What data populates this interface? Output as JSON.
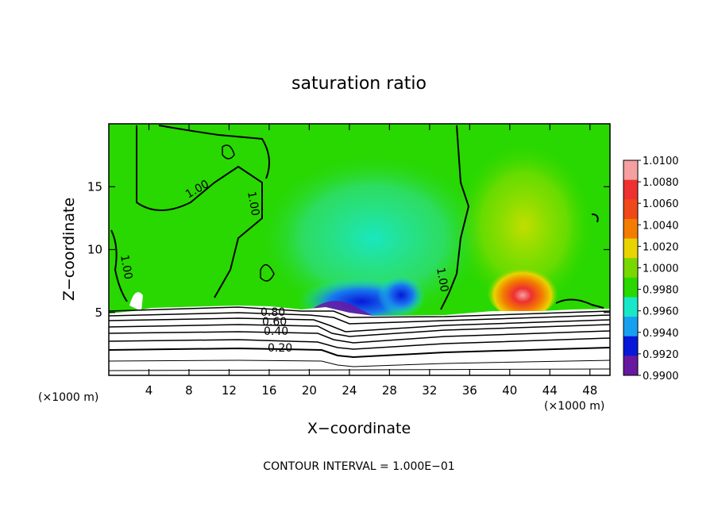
{
  "chart_data": {
    "type": "heatmap",
    "title": "saturation ratio",
    "xlabel": "X−coordinate",
    "ylabel": "Z−coordinate",
    "x_unit_left": "(×1000 m)",
    "x_unit_right": "(×1000 m)",
    "footer": "CONTOUR INTERVAL = 1.000E−01",
    "xlim": [
      0,
      50
    ],
    "ylim": [
      0,
      20
    ],
    "x_ticks": [
      "4",
      "8",
      "12",
      "16",
      "20",
      "24",
      "28",
      "32",
      "36",
      "40",
      "44",
      "48"
    ],
    "x_tick_values": [
      4,
      8,
      12,
      16,
      20,
      24,
      28,
      32,
      36,
      40,
      44,
      48
    ],
    "y_ticks": [
      "5",
      "10",
      "15"
    ],
    "y_tick_values": [
      5,
      10,
      15
    ],
    "colorbar": {
      "labels": [
        "1.0100",
        "1.0080",
        "1.0060",
        "1.0040",
        "1.0020",
        "1.0000",
        "0.9980",
        "0.9960",
        "0.9940",
        "0.9920",
        "0.9900"
      ],
      "colors": [
        "#f4a0a0",
        "#ee3030",
        "#f04818",
        "#f47c00",
        "#e8d400",
        "#78d800",
        "#28d800",
        "#18e8c8",
        "#18a0f0",
        "#0818d8",
        "#6818a0"
      ]
    },
    "contour_labels": [
      "1.00",
      "1.00",
      "1.00",
      "1.00",
      "0.80",
      "0.60",
      "0.40",
      "0.20"
    ],
    "colors": {
      "background": "#28d800",
      "land": "#ffffff"
    }
  }
}
